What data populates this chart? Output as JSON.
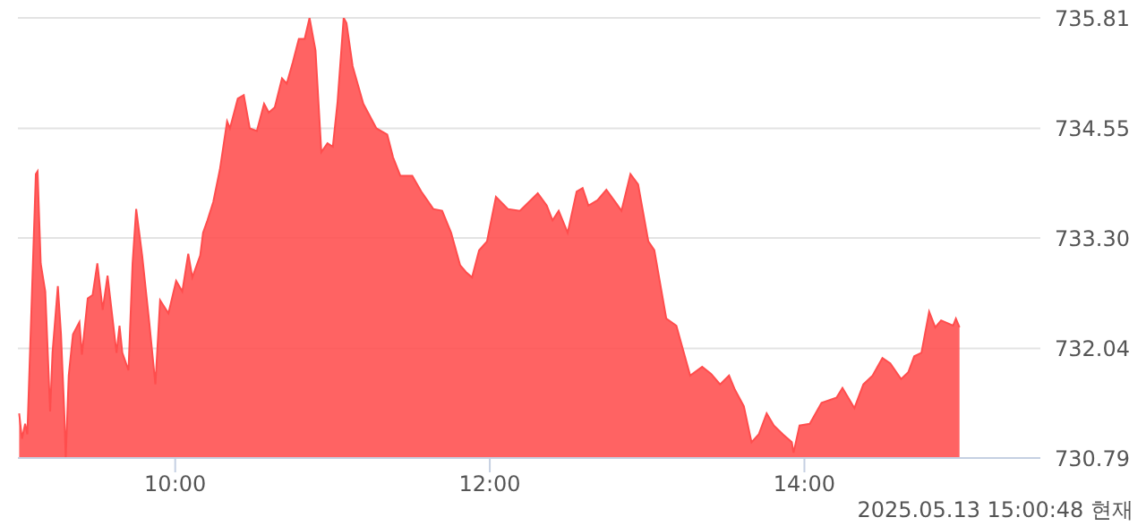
{
  "chart_data": {
    "type": "area",
    "annotations": [
      "2025.05.13 15:00:48 현재"
    ],
    "x": [
      9.008,
      9.026,
      9.046,
      9.06,
      9.114,
      9.125,
      9.145,
      9.174,
      9.205,
      9.22,
      9.254,
      9.274,
      9.296,
      9.304,
      9.323,
      9.35,
      9.391,
      9.407,
      9.444,
      9.475,
      9.505,
      9.539,
      9.57,
      9.627,
      9.646,
      9.664,
      9.703,
      9.729,
      9.752,
      9.79,
      9.835,
      9.874,
      9.904,
      9.957,
      10.006,
      10.045,
      10.083,
      10.109,
      10.159,
      10.177,
      10.205,
      10.242,
      10.284,
      10.33,
      10.348,
      10.398,
      10.436,
      10.474,
      10.519,
      10.565,
      10.595,
      10.633,
      10.679,
      10.709,
      10.747,
      10.786,
      10.823,
      10.854,
      10.892,
      10.929,
      10.968,
      11.002,
      11.032,
      11.071,
      11.089,
      11.128,
      11.196,
      11.279,
      11.348,
      11.385,
      11.431,
      11.507,
      11.564,
      11.641,
      11.697,
      11.754,
      11.811,
      11.849,
      11.887,
      11.932,
      11.982,
      12.039,
      12.115,
      12.191,
      12.305,
      12.362,
      12.399,
      12.438,
      12.495,
      12.552,
      12.59,
      12.627,
      12.684,
      12.741,
      12.798,
      12.837,
      12.894,
      12.943,
      13.008,
      13.046,
      13.122,
      13.186,
      13.274,
      13.35,
      13.407,
      13.464,
      13.521,
      13.558,
      13.615,
      13.664,
      13.71,
      13.76,
      13.806,
      13.863,
      13.92,
      13.931,
      13.969,
      14.034,
      14.109,
      14.205,
      14.242,
      14.318,
      14.375,
      14.433,
      14.496,
      14.546,
      14.615,
      14.661,
      14.698,
      14.744,
      14.793,
      14.832,
      14.869,
      14.945,
      14.963,
      14.986
    ],
    "series": [
      {
        "color": "#ff4d4d",
        "values": [
          731.3,
          731.01,
          731.18,
          731.06,
          734.03,
          734.06,
          733.01,
          732.69,
          731.32,
          731.99,
          732.75,
          732.2,
          731.26,
          730.79,
          731.73,
          732.2,
          732.34,
          731.97,
          732.61,
          732.65,
          733.01,
          732.48,
          732.87,
          731.99,
          732.3,
          731.99,
          731.79,
          733.01,
          733.63,
          733.1,
          732.34,
          731.63,
          732.59,
          732.44,
          732.81,
          732.69,
          733.12,
          732.85,
          733.1,
          733.36,
          733.5,
          733.71,
          734.08,
          734.63,
          734.55,
          734.89,
          734.93,
          734.55,
          734.52,
          734.83,
          734.73,
          734.79,
          735.12,
          735.06,
          735.3,
          735.57,
          735.57,
          735.81,
          735.44,
          734.28,
          734.38,
          734.34,
          734.85,
          735.81,
          735.75,
          735.26,
          734.83,
          734.55,
          734.48,
          734.22,
          734.01,
          734.01,
          733.83,
          733.63,
          733.61,
          733.36,
          732.99,
          732.91,
          732.85,
          733.16,
          733.26,
          733.77,
          733.63,
          733.61,
          733.81,
          733.67,
          733.5,
          733.61,
          733.36,
          733.83,
          733.87,
          733.67,
          733.73,
          733.85,
          733.71,
          733.61,
          734.03,
          733.91,
          733.26,
          733.16,
          732.38,
          732.3,
          731.73,
          731.83,
          731.75,
          731.63,
          731.73,
          731.57,
          731.38,
          730.97,
          731.06,
          731.3,
          731.16,
          731.06,
          730.97,
          730.85,
          731.16,
          731.18,
          731.42,
          731.48,
          731.59,
          731.36,
          731.63,
          731.73,
          731.93,
          731.87,
          731.69,
          731.77,
          731.95,
          731.99,
          732.46,
          732.28,
          732.36,
          732.3,
          732.38,
          732.28
        ]
      }
    ],
    "xlim": [
      9,
      15.5
    ],
    "xticks": [
      {
        "value": 10,
        "label": "10:00"
      },
      {
        "value": 12,
        "label": "12:00"
      },
      {
        "value": 14,
        "label": "14:00"
      }
    ],
    "ylim": [
      730.79,
      735.81
    ],
    "yticks": [
      730.79,
      732.04,
      {
        "value": 733.3,
        "label": "733.30"
      },
      734.55,
      735.81
    ],
    "grid": "y"
  }
}
